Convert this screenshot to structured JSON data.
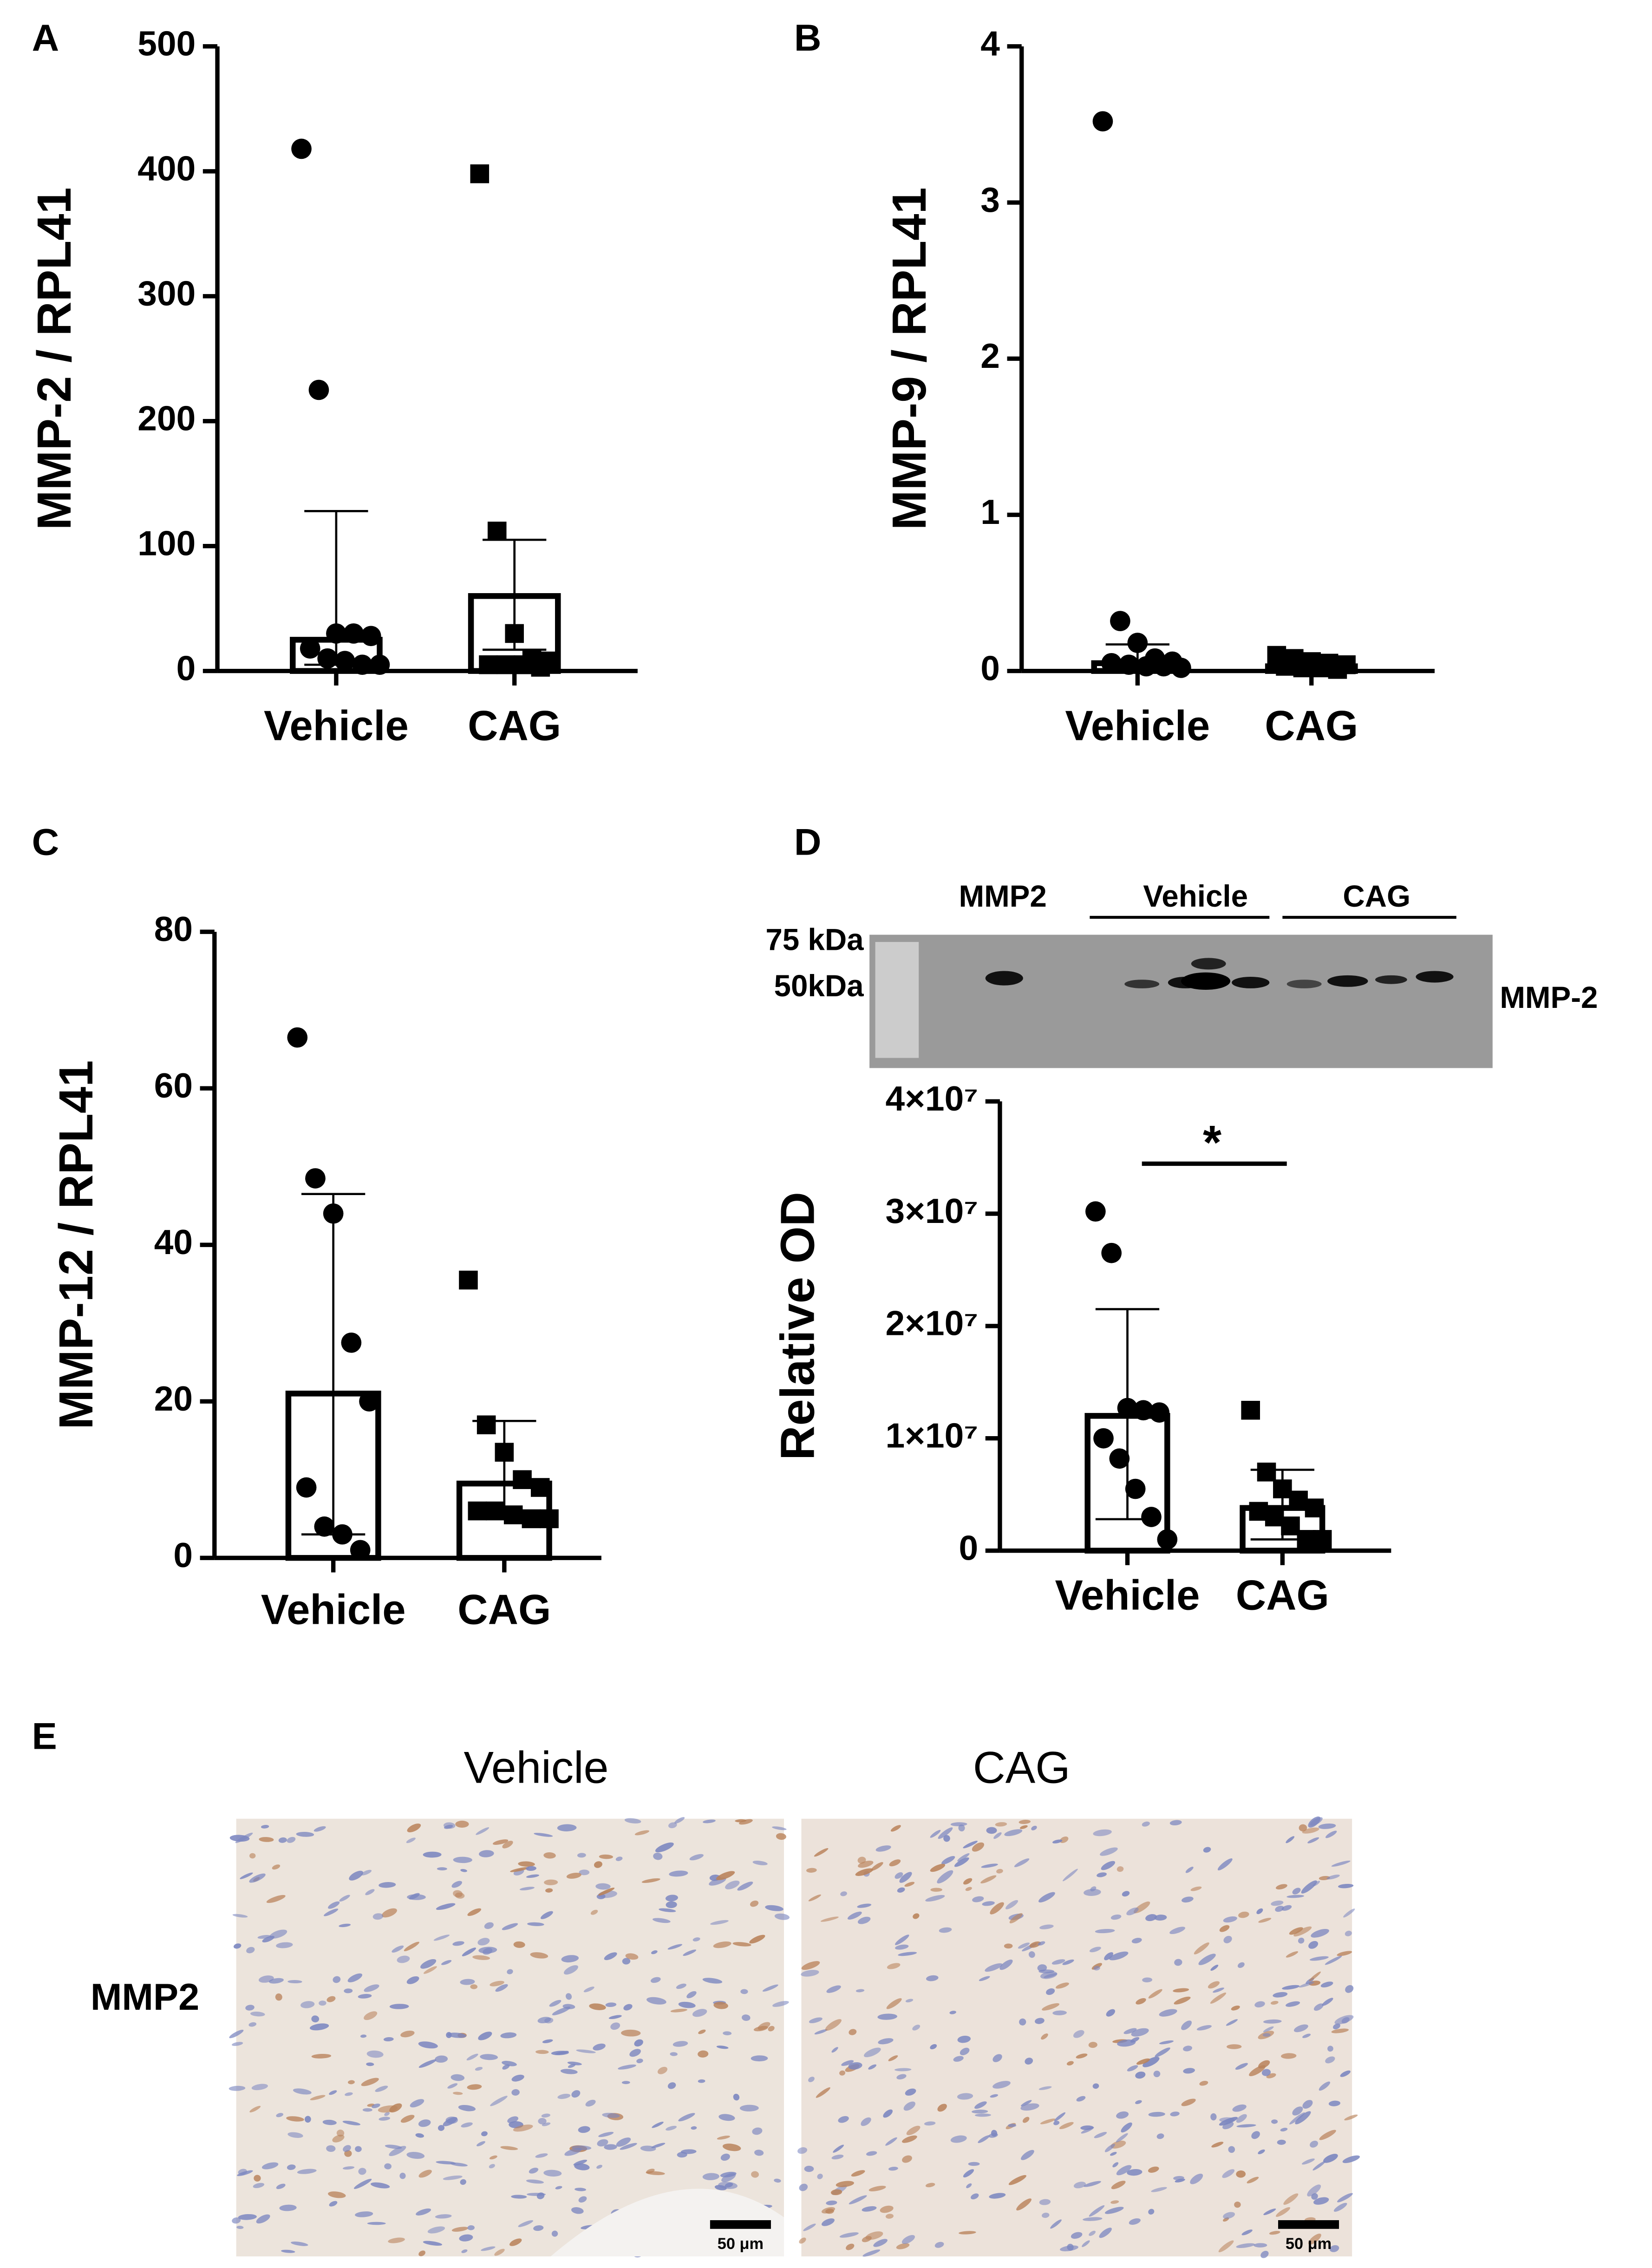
{
  "chart_data": [
    {
      "type": "bar_scatter",
      "panel": "A",
      "ylabel": "MMP-2 / RPL41",
      "categories": [
        "Vehicle",
        "CAG"
      ],
      "values": [
        25,
        60
      ],
      "error_low": [
        5,
        17
      ],
      "error_high": [
        128,
        105
      ],
      "points": [
        [
          418,
          225,
          30,
          30,
          28,
          18,
          10,
          8,
          5,
          5
        ],
        [
          398,
          112,
          30,
          10,
          8,
          5,
          5,
          5,
          3
        ]
      ],
      "markers": [
        "circle",
        "square"
      ],
      "color": "#000000",
      "ylim": [
        0,
        500
      ],
      "yticks": [
        0,
        100,
        200,
        300,
        400,
        500
      ]
    },
    {
      "type": "bar_scatter",
      "panel": "B",
      "ylabel": "MMP-9 / RPL41",
      "categories": [
        "Vehicle",
        "CAG"
      ],
      "values": [
        0.05,
        0.03
      ],
      "error_low": [
        0.02,
        0.01
      ],
      "error_high": [
        0.17,
        0.06
      ],
      "points": [
        [
          3.52,
          0.32,
          0.18,
          0.08,
          0.06,
          0.05,
          0.04,
          0.03,
          0.03,
          0.02
        ],
        [
          0.1,
          0.08,
          0.06,
          0.05,
          0.04,
          0.03,
          0.02,
          0.02,
          0.01
        ]
      ],
      "markers": [
        "circle",
        "square"
      ],
      "color": "#000000",
      "ylim": [
        0,
        4
      ],
      "yticks": [
        0,
        1,
        2,
        3,
        4
      ]
    },
    {
      "type": "bar_scatter",
      "panel": "C",
      "ylabel": "MMP-12 / RPL41",
      "categories": [
        "Vehicle",
        "CAG"
      ],
      "values": [
        21,
        9.5
      ],
      "error_low": [
        3,
        5
      ],
      "error_high": [
        46.5,
        17.5
      ],
      "points": [
        [
          66.5,
          48.5,
          44,
          27.5,
          20,
          9,
          4,
          3,
          1
        ],
        [
          35.5,
          17,
          13.5,
          10,
          9,
          6,
          6,
          5.5,
          5,
          5
        ]
      ],
      "markers": [
        "circle",
        "square"
      ],
      "color": "#000000",
      "ylim": [
        0,
        80
      ],
      "yticks": [
        0,
        20,
        40,
        60,
        80
      ]
    },
    {
      "type": "bar_scatter",
      "panel": "D",
      "ylabel": "Relative OD",
      "categories": [
        "Vehicle",
        "CAG"
      ],
      "values": [
        12000000,
        3800000
      ],
      "error_low": [
        2800000,
        1000000
      ],
      "error_high": [
        21500000,
        7200000
      ],
      "points": [
        [
          30200000,
          26500000,
          12700000,
          12500000,
          12300000,
          10000000,
          8200000,
          5500000,
          3000000,
          1000000
        ],
        [
          12500000,
          7000000,
          5500000,
          4500000,
          3800000,
          3500000,
          3000000,
          2200000,
          1000000,
          1000000
        ]
      ],
      "markers": [
        "circle",
        "square"
      ],
      "color": "#000000",
      "significance": "*",
      "ylim": [
        0,
        40000000
      ],
      "yticks": [
        0,
        {
          "value": 10000000,
          "label": "1×10⁷"
        },
        {
          "value": 20000000,
          "label": "2×10⁷"
        },
        {
          "value": 30000000,
          "label": "3×10⁷"
        },
        {
          "value": 40000000,
          "label": "4×10⁷"
        }
      ]
    }
  ],
  "blot": {
    "lanes": [
      "MMP2",
      "Vehicle",
      "CAG"
    ],
    "markers": [
      "75 kDa",
      "50kDa"
    ],
    "band": "MMP-2"
  },
  "histology": {
    "panel": "E",
    "columns": [
      "Vehicle",
      "CAG"
    ],
    "row": "MMP2",
    "scale_bars": [
      "50 μm",
      "50 μm"
    ]
  }
}
